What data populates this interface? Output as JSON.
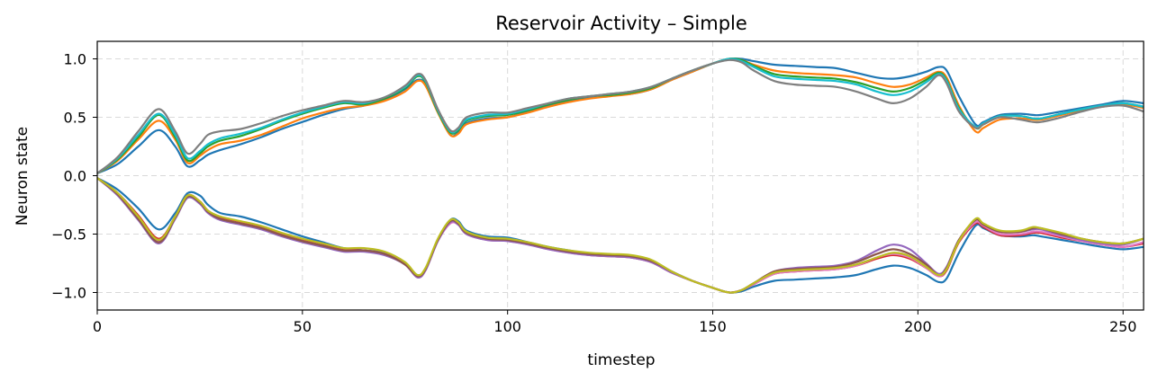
{
  "chart_data": {
    "type": "line",
    "title": "Reservoir Activity – Simple",
    "xlabel": "timestep",
    "ylabel": "Neuron state",
    "xlim": [
      0,
      255
    ],
    "ylim": [
      -1.15,
      1.15
    ],
    "xticks": [
      0,
      50,
      100,
      150,
      200,
      250
    ],
    "xtick_labels": [
      "0",
      "50",
      "100",
      "150",
      "200",
      "250"
    ],
    "yticks": [
      -1.0,
      -0.5,
      0.0,
      0.5,
      1.0
    ],
    "ytick_labels": [
      "−1.0",
      "−0.5",
      "0.0",
      "0.5",
      "1.0"
    ],
    "grid": true,
    "x": [
      0,
      5,
      10,
      15,
      19,
      22,
      25,
      27,
      30,
      35,
      40,
      45,
      50,
      55,
      60,
      65,
      70,
      75,
      78,
      80,
      83,
      86,
      88,
      90,
      95,
      100,
      105,
      110,
      115,
      120,
      125,
      130,
      135,
      140,
      145,
      150,
      154,
      157,
      160,
      165,
      170,
      175,
      180,
      185,
      190,
      194,
      198,
      202,
      205,
      207,
      210,
      214,
      216,
      220,
      225,
      228,
      230,
      235,
      240,
      245,
      250,
      255
    ],
    "series": [
      {
        "color": "#1f77b4",
        "values": [
          0.02,
          0.1,
          0.25,
          0.39,
          0.25,
          0.08,
          0.13,
          0.18,
          0.22,
          0.27,
          0.33,
          0.4,
          0.46,
          0.52,
          0.57,
          0.6,
          0.65,
          0.74,
          0.82,
          0.78,
          0.55,
          0.35,
          0.37,
          0.45,
          0.49,
          0.5,
          0.55,
          0.6,
          0.64,
          0.67,
          0.69,
          0.7,
          0.74,
          0.82,
          0.89,
          0.96,
          1.0,
          1.0,
          0.98,
          0.95,
          0.94,
          0.93,
          0.92,
          0.88,
          0.84,
          0.83,
          0.85,
          0.89,
          0.93,
          0.9,
          0.68,
          0.44,
          0.46,
          0.52,
          0.53,
          0.52,
          0.52,
          0.55,
          0.58,
          0.61,
          0.64,
          0.62
        ]
      },
      {
        "color": "#ff7f0e",
        "values": [
          0.02,
          0.13,
          0.31,
          0.47,
          0.31,
          0.11,
          0.17,
          0.22,
          0.27,
          0.3,
          0.35,
          0.42,
          0.49,
          0.54,
          0.58,
          0.6,
          0.64,
          0.72,
          0.81,
          0.77,
          0.54,
          0.35,
          0.36,
          0.44,
          0.48,
          0.5,
          0.54,
          0.59,
          0.63,
          0.66,
          0.68,
          0.7,
          0.74,
          0.82,
          0.89,
          0.96,
          1.0,
          0.99,
          0.95,
          0.9,
          0.88,
          0.87,
          0.86,
          0.84,
          0.79,
          0.76,
          0.78,
          0.84,
          0.89,
          0.84,
          0.6,
          0.38,
          0.41,
          0.48,
          0.49,
          0.48,
          0.48,
          0.52,
          0.56,
          0.59,
          0.61,
          0.58
        ]
      },
      {
        "color": "#2ca02c",
        "values": [
          0.02,
          0.14,
          0.33,
          0.52,
          0.33,
          0.13,
          0.19,
          0.25,
          0.3,
          0.34,
          0.4,
          0.47,
          0.53,
          0.58,
          0.62,
          0.61,
          0.66,
          0.75,
          0.85,
          0.8,
          0.55,
          0.37,
          0.39,
          0.47,
          0.51,
          0.52,
          0.56,
          0.61,
          0.65,
          0.68,
          0.69,
          0.71,
          0.75,
          0.83,
          0.9,
          0.96,
          1.0,
          0.99,
          0.94,
          0.87,
          0.85,
          0.84,
          0.83,
          0.8,
          0.75,
          0.72,
          0.75,
          0.82,
          0.88,
          0.82,
          0.58,
          0.41,
          0.44,
          0.51,
          0.51,
          0.49,
          0.49,
          0.53,
          0.57,
          0.6,
          0.62,
          0.59
        ]
      },
      {
        "color": "#17becf",
        "values": [
          0.02,
          0.15,
          0.35,
          0.53,
          0.35,
          0.15,
          0.21,
          0.27,
          0.32,
          0.36,
          0.41,
          0.48,
          0.54,
          0.59,
          0.63,
          0.62,
          0.67,
          0.76,
          0.86,
          0.81,
          0.56,
          0.38,
          0.4,
          0.48,
          0.52,
          0.53,
          0.57,
          0.62,
          0.66,
          0.68,
          0.7,
          0.72,
          0.76,
          0.83,
          0.9,
          0.96,
          1.0,
          0.98,
          0.93,
          0.85,
          0.83,
          0.82,
          0.81,
          0.78,
          0.72,
          0.69,
          0.72,
          0.8,
          0.87,
          0.81,
          0.57,
          0.42,
          0.45,
          0.51,
          0.51,
          0.49,
          0.49,
          0.53,
          0.57,
          0.6,
          0.62,
          0.59
        ]
      },
      {
        "color": "#7f7f7f",
        "values": [
          0.02,
          0.16,
          0.38,
          0.57,
          0.38,
          0.19,
          0.27,
          0.35,
          0.38,
          0.4,
          0.45,
          0.51,
          0.56,
          0.6,
          0.64,
          0.63,
          0.67,
          0.77,
          0.87,
          0.82,
          0.57,
          0.39,
          0.41,
          0.5,
          0.54,
          0.54,
          0.58,
          0.62,
          0.66,
          0.68,
          0.7,
          0.72,
          0.76,
          0.83,
          0.9,
          0.96,
          0.99,
          0.97,
          0.9,
          0.81,
          0.78,
          0.77,
          0.76,
          0.72,
          0.66,
          0.62,
          0.66,
          0.76,
          0.86,
          0.79,
          0.55,
          0.41,
          0.44,
          0.5,
          0.48,
          0.46,
          0.46,
          0.5,
          0.55,
          0.59,
          0.6,
          0.55
        ]
      },
      {
        "color": "#1f77b4",
        "values": [
          -0.02,
          -0.12,
          -0.28,
          -0.46,
          -0.32,
          -0.15,
          -0.17,
          -0.25,
          -0.32,
          -0.35,
          -0.4,
          -0.46,
          -0.52,
          -0.57,
          -0.62,
          -0.64,
          -0.66,
          -0.75,
          -0.85,
          -0.8,
          -0.55,
          -0.38,
          -0.39,
          -0.47,
          -0.52,
          -0.53,
          -0.57,
          -0.61,
          -0.64,
          -0.67,
          -0.68,
          -0.69,
          -0.73,
          -0.82,
          -0.9,
          -0.96,
          -1.0,
          -0.99,
          -0.95,
          -0.9,
          -0.89,
          -0.88,
          -0.87,
          -0.85,
          -0.8,
          -0.77,
          -0.79,
          -0.85,
          -0.91,
          -0.88,
          -0.66,
          -0.43,
          -0.45,
          -0.51,
          -0.52,
          -0.51,
          -0.52,
          -0.55,
          -0.58,
          -0.61,
          -0.63,
          -0.61
        ]
      },
      {
        "color": "#d62728",
        "values": [
          -0.02,
          -0.15,
          -0.34,
          -0.54,
          -0.35,
          -0.17,
          -0.22,
          -0.3,
          -0.36,
          -0.4,
          -0.44,
          -0.5,
          -0.55,
          -0.59,
          -0.63,
          -0.64,
          -0.67,
          -0.75,
          -0.86,
          -0.8,
          -0.55,
          -0.4,
          -0.41,
          -0.49,
          -0.54,
          -0.55,
          -0.58,
          -0.62,
          -0.65,
          -0.68,
          -0.69,
          -0.7,
          -0.74,
          -0.83,
          -0.9,
          -0.96,
          -1.0,
          -0.98,
          -0.93,
          -0.84,
          -0.82,
          -0.81,
          -0.8,
          -0.77,
          -0.71,
          -0.68,
          -0.71,
          -0.79,
          -0.86,
          -0.81,
          -0.57,
          -0.41,
          -0.44,
          -0.51,
          -0.51,
          -0.49,
          -0.49,
          -0.53,
          -0.56,
          -0.59,
          -0.61,
          -0.58
        ]
      },
      {
        "color": "#e377c2",
        "values": [
          -0.02,
          -0.16,
          -0.36,
          -0.56,
          -0.36,
          -0.18,
          -0.23,
          -0.31,
          -0.37,
          -0.41,
          -0.45,
          -0.51,
          -0.56,
          -0.6,
          -0.64,
          -0.64,
          -0.67,
          -0.76,
          -0.87,
          -0.81,
          -0.56,
          -0.41,
          -0.42,
          -0.5,
          -0.55,
          -0.56,
          -0.59,
          -0.63,
          -0.66,
          -0.68,
          -0.69,
          -0.7,
          -0.74,
          -0.83,
          -0.9,
          -0.96,
          -1.0,
          -0.98,
          -0.93,
          -0.84,
          -0.82,
          -0.81,
          -0.8,
          -0.77,
          -0.7,
          -0.67,
          -0.7,
          -0.79,
          -0.86,
          -0.8,
          -0.56,
          -0.4,
          -0.43,
          -0.5,
          -0.5,
          -0.48,
          -0.48,
          -0.52,
          -0.56,
          -0.59,
          -0.61,
          -0.57
        ]
      },
      {
        "color": "#9467bd",
        "values": [
          -0.02,
          -0.17,
          -0.38,
          -0.58,
          -0.37,
          -0.19,
          -0.24,
          -0.32,
          -0.38,
          -0.42,
          -0.46,
          -0.52,
          -0.57,
          -0.61,
          -0.65,
          -0.65,
          -0.68,
          -0.76,
          -0.87,
          -0.81,
          -0.56,
          -0.4,
          -0.42,
          -0.5,
          -0.55,
          -0.56,
          -0.59,
          -0.63,
          -0.66,
          -0.68,
          -0.69,
          -0.7,
          -0.74,
          -0.83,
          -0.9,
          -0.96,
          -1.0,
          -0.98,
          -0.92,
          -0.82,
          -0.79,
          -0.78,
          -0.77,
          -0.73,
          -0.64,
          -0.59,
          -0.63,
          -0.75,
          -0.84,
          -0.78,
          -0.55,
          -0.38,
          -0.42,
          -0.48,
          -0.48,
          -0.46,
          -0.46,
          -0.51,
          -0.55,
          -0.58,
          -0.59,
          -0.54
        ]
      },
      {
        "color": "#8c564b",
        "values": [
          -0.02,
          -0.16,
          -0.37,
          -0.57,
          -0.36,
          -0.18,
          -0.23,
          -0.31,
          -0.37,
          -0.41,
          -0.45,
          -0.51,
          -0.56,
          -0.6,
          -0.64,
          -0.64,
          -0.67,
          -0.76,
          -0.86,
          -0.8,
          -0.55,
          -0.39,
          -0.41,
          -0.49,
          -0.54,
          -0.55,
          -0.58,
          -0.62,
          -0.65,
          -0.67,
          -0.68,
          -0.69,
          -0.73,
          -0.82,
          -0.9,
          -0.96,
          -1.0,
          -0.98,
          -0.92,
          -0.82,
          -0.8,
          -0.79,
          -0.78,
          -0.74,
          -0.67,
          -0.63,
          -0.67,
          -0.76,
          -0.85,
          -0.79,
          -0.55,
          -0.38,
          -0.42,
          -0.48,
          -0.48,
          -0.45,
          -0.45,
          -0.5,
          -0.54,
          -0.57,
          -0.58,
          -0.54
        ]
      },
      {
        "color": "#bcbd22",
        "values": [
          -0.02,
          -0.15,
          -0.35,
          -0.55,
          -0.35,
          -0.17,
          -0.22,
          -0.3,
          -0.35,
          -0.39,
          -0.43,
          -0.49,
          -0.54,
          -0.58,
          -0.62,
          -0.62,
          -0.65,
          -0.74,
          -0.85,
          -0.79,
          -0.54,
          -0.38,
          -0.4,
          -0.48,
          -0.53,
          -0.54,
          -0.57,
          -0.61,
          -0.64,
          -0.66,
          -0.67,
          -0.68,
          -0.72,
          -0.82,
          -0.9,
          -0.96,
          -1.0,
          -0.98,
          -0.92,
          -0.83,
          -0.81,
          -0.8,
          -0.79,
          -0.76,
          -0.7,
          -0.66,
          -0.69,
          -0.78,
          -0.85,
          -0.8,
          -0.56,
          -0.37,
          -0.41,
          -0.47,
          -0.47,
          -0.44,
          -0.45,
          -0.49,
          -0.54,
          -0.57,
          -0.58,
          -0.54
        ]
      }
    ]
  }
}
